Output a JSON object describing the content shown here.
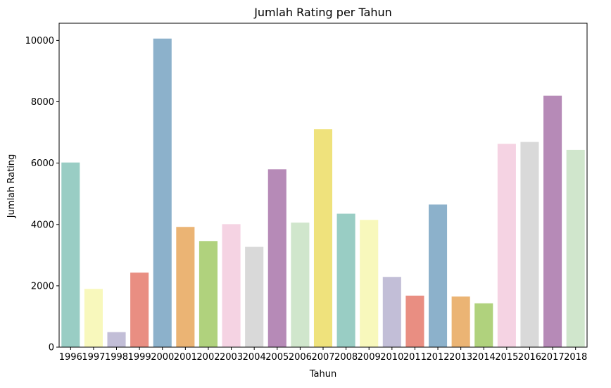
{
  "chart_data": {
    "type": "bar",
    "title": "Jumlah Rating per Tahun",
    "xlabel": "Tahun",
    "ylabel": "Jumlah Rating",
    "categories": [
      "1996",
      "1997",
      "1998",
      "1999",
      "2000",
      "2001",
      "2002",
      "2003",
      "2004",
      "2005",
      "2006",
      "2007",
      "2008",
      "2009",
      "2010",
      "2011",
      "2012",
      "2013",
      "2014",
      "2015",
      "2016",
      "2017",
      "2018"
    ],
    "values": [
      6020,
      1900,
      490,
      2430,
      10060,
      3920,
      3460,
      4010,
      3270,
      5800,
      4060,
      7110,
      4350,
      4150,
      2290,
      1680,
      4650,
      1650,
      1430,
      6630,
      6690,
      8200,
      6430
    ],
    "colors": [
      "#99cdc4",
      "#f8f8bc",
      "#c2bed7",
      "#e98e82",
      "#8cb1cb",
      "#ebb474",
      "#b0d27d",
      "#f5d3e3",
      "#d9d9d9",
      "#b68ab7",
      "#d0e6cc",
      "#efe27c",
      "#99cdc4",
      "#f8f8bc",
      "#c2bed7",
      "#e98e82",
      "#8cb1cb",
      "#ebb474",
      "#b0d27d",
      "#f5d3e3",
      "#d9d9d9",
      "#b68ab7",
      "#d0e6cc"
    ],
    "ylim": [
      0,
      10560
    ],
    "yticks": [
      0,
      2000,
      4000,
      6000,
      8000,
      10000
    ],
    "grid": false,
    "legend": "none"
  }
}
